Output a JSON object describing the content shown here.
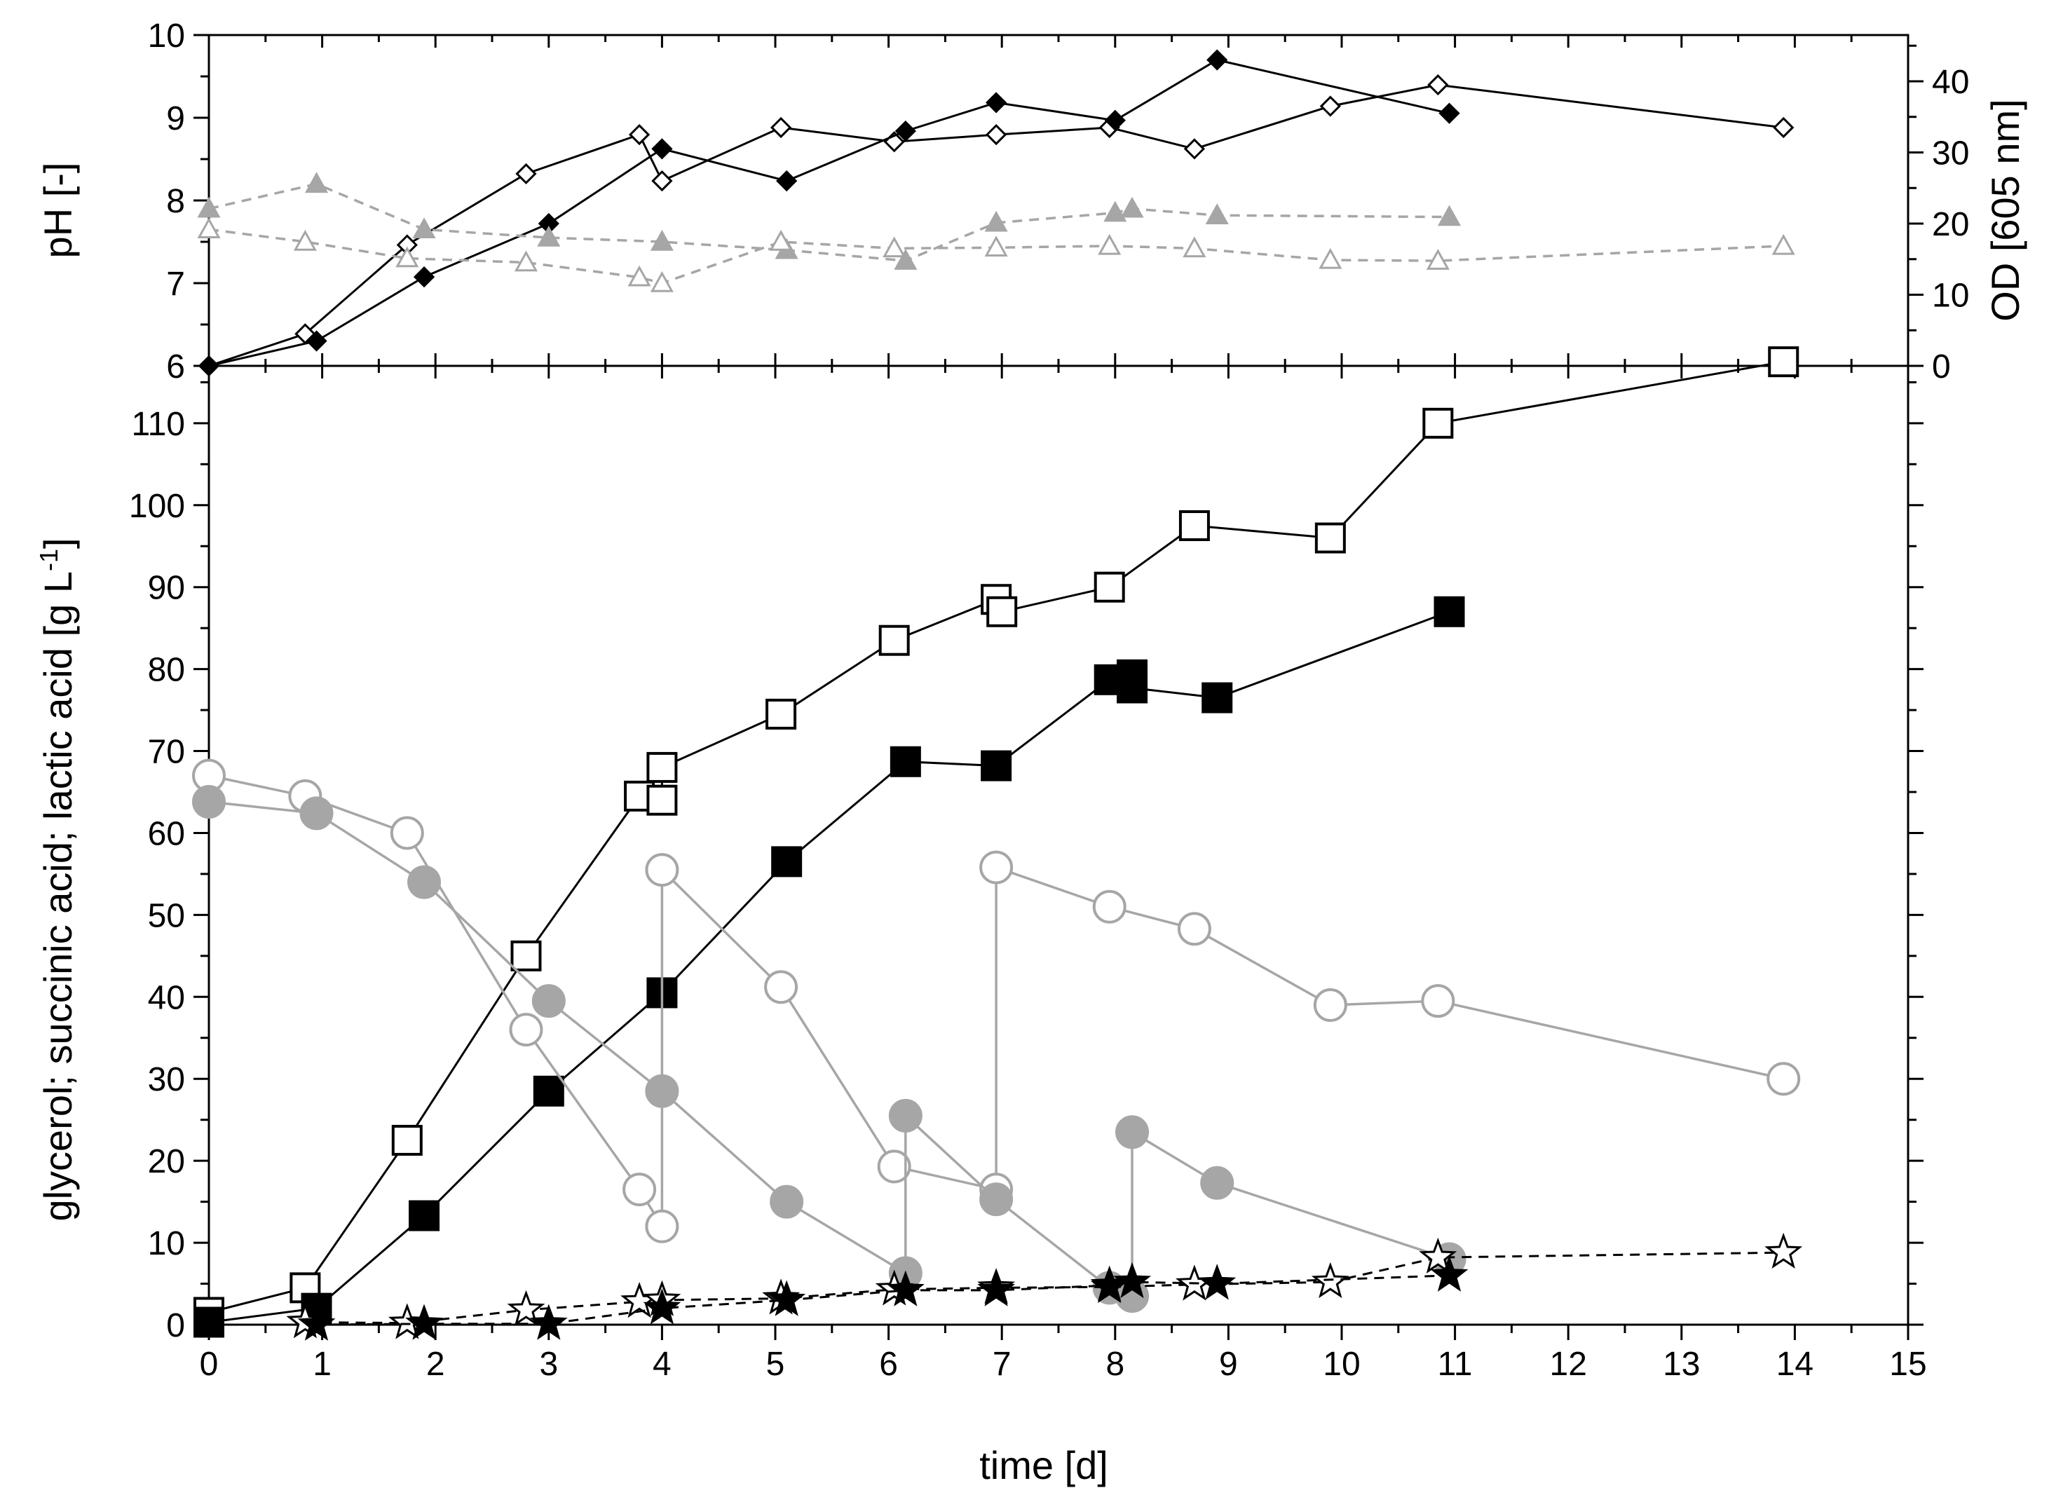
{
  "figure": {
    "xlabel": "time [d]",
    "x_ticks": [
      "0",
      "1",
      "2",
      "3",
      "4",
      "5",
      "6",
      "7",
      "8",
      "9",
      "10",
      "11",
      "12",
      "13",
      "14",
      "15"
    ],
    "xlim": [
      0,
      15
    ]
  },
  "chart_data": [
    {
      "type": "line",
      "panel": "top",
      "ylabel_left": "pH [-]",
      "ylabel_right": "OD [605 nm]",
      "ylim_left": [
        6,
        10
      ],
      "ylim_right": [
        0,
        46.5
      ],
      "y_ticks_left": [
        "6",
        "7",
        "8",
        "9",
        "10"
      ],
      "y_ticks_right": [
        "0",
        "10",
        "20",
        "30",
        "40"
      ],
      "series": [
        {
          "name": "OD (open diamonds)",
          "axis": "right",
          "marker": "diamond",
          "filled": false,
          "color": "#000000",
          "dash": false,
          "x": [
            0,
            0.85,
            1.75,
            2.8,
            3.8,
            4.0,
            5.05,
            6.05,
            6.95,
            7.95,
            8.7,
            9.9,
            10.85,
            13.9
          ],
          "y": [
            0,
            4.5,
            17,
            27,
            32.5,
            26,
            33.5,
            31.5,
            32.5,
            33.5,
            30.5,
            36.5,
            39.5,
            33.5
          ]
        },
        {
          "name": "OD (filled diamonds)",
          "axis": "right",
          "marker": "diamond",
          "filled": true,
          "color": "#000000",
          "dash": false,
          "x": [
            0,
            0.95,
            1.9,
            3.0,
            4.0,
            5.1,
            6.15,
            6.95,
            8.0,
            8.9,
            10.95
          ],
          "y": [
            0,
            3.5,
            12.5,
            20,
            30.5,
            26,
            33,
            37,
            34.5,
            43,
            35.5
          ]
        },
        {
          "name": "pH (filled triangles)",
          "axis": "left",
          "marker": "triangle",
          "filled": true,
          "color": "#a6a6a6",
          "dash": true,
          "x": [
            0,
            0.95,
            1.9,
            3.0,
            4.0,
            5.1,
            6.15,
            6.95,
            8.0,
            8.15,
            8.9,
            10.95
          ],
          "y": [
            7.9,
            8.2,
            7.65,
            7.55,
            7.5,
            7.4,
            7.27,
            7.73,
            7.85,
            7.9,
            7.82,
            7.8
          ]
        },
        {
          "name": "pH (open triangles)",
          "axis": "left",
          "marker": "triangle",
          "filled": false,
          "color": "#a6a6a6",
          "dash": true,
          "x": [
            0,
            0.85,
            1.75,
            2.8,
            3.8,
            4.0,
            5.05,
            6.05,
            6.95,
            7.95,
            8.7,
            9.9,
            10.85,
            13.9
          ],
          "y": [
            7.65,
            7.5,
            7.3,
            7.25,
            7.07,
            7.0,
            7.5,
            7.42,
            7.43,
            7.45,
            7.42,
            7.28,
            7.27,
            7.45
          ]
        }
      ]
    },
    {
      "type": "line",
      "panel": "bottom",
      "ylabel": "glycerol; succinic acid; lactic acid [g L",
      "ylabel_superscript": "-1",
      "ylabel_close": "]",
      "ylim": [
        0,
        117
      ],
      "y_ticks": [
        "0",
        "10",
        "20",
        "30",
        "40",
        "50",
        "60",
        "70",
        "80",
        "90",
        "100",
        "110"
      ],
      "series": [
        {
          "name": "succinic acid (open squares)",
          "marker": "square",
          "filled": false,
          "color": "#000000",
          "dash": false,
          "x": [
            0,
            0.85,
            1.75,
            2.8,
            3.8,
            4.0,
            4.0,
            5.05,
            6.05,
            6.95,
            7.0,
            7.95,
            8.7,
            9.9,
            10.85,
            13.9
          ],
          "y": [
            1.5,
            4.5,
            22.5,
            45,
            64.5,
            64,
            68,
            74.5,
            83.5,
            88.5,
            87,
            90,
            97.5,
            96,
            110,
            117.5
          ]
        },
        {
          "name": "succinic acid (filled squares)",
          "marker": "square",
          "filled": true,
          "color": "#000000",
          "dash": false,
          "x": [
            0,
            0.95,
            1.9,
            3.0,
            4.0,
            5.1,
            6.15,
            6.95,
            7.95,
            8.15,
            8.15,
            8.9,
            10.95
          ],
          "y": [
            0.3,
            2,
            13.3,
            28.5,
            40.5,
            56.5,
            68.7,
            68.2,
            78.7,
            79.3,
            77.7,
            76.5,
            87
          ]
        },
        {
          "name": "glycerol (open circles)",
          "marker": "circle",
          "filled": false,
          "color": "#a6a6a6",
          "dash": false,
          "x": [
            0,
            0.85,
            1.75,
            2.8,
            3.8,
            4.0,
            4.0,
            5.05,
            6.05,
            6.95,
            6.95,
            7.95,
            8.7,
            9.9,
            10.85,
            13.9
          ],
          "y": [
            67,
            64.5,
            60,
            36,
            16.5,
            12,
            55.5,
            41.2,
            19.3,
            16.5,
            55.8,
            51,
            48.3,
            39,
            39.5,
            30
          ]
        },
        {
          "name": "glycerol (filled circles)",
          "marker": "circle",
          "filled": true,
          "color": "#a6a6a6",
          "dash": false,
          "x": [
            0,
            0.95,
            1.9,
            3.0,
            4.0,
            5.1,
            6.15,
            6.15,
            6.95,
            7.95,
            8.15,
            8.15,
            8.9,
            10.95
          ],
          "y": [
            63.8,
            62.4,
            54,
            39.5,
            28.5,
            15,
            6.3,
            25.5,
            15.3,
            4.5,
            3.5,
            23.5,
            17.3,
            8
          ]
        },
        {
          "name": "lactic acid (open stars)",
          "marker": "star",
          "filled": false,
          "color": "#000000",
          "dash": true,
          "x": [
            0.85,
            1.75,
            2.8,
            3.8,
            4.0,
            5.05,
            6.05,
            6.95,
            7.95,
            8.7,
            9.9,
            10.85,
            13.9
          ],
          "y": [
            0.3,
            0.2,
            1.8,
            2.8,
            3,
            3.2,
            4.3,
            4.5,
            4.6,
            4.9,
            5.2,
            8.2,
            8.8
          ]
        },
        {
          "name": "lactic acid (filled stars)",
          "marker": "star",
          "filled": true,
          "color": "#000000",
          "dash": true,
          "x": [
            0.95,
            1.9,
            3.0,
            4.0,
            5.1,
            6.15,
            6.95,
            7.95,
            8.15,
            8.9,
            10.95
          ],
          "y": [
            0,
            0.1,
            0.1,
            2,
            3,
            4.2,
            4.2,
            4.8,
            5.2,
            5,
            6
          ]
        }
      ]
    }
  ]
}
